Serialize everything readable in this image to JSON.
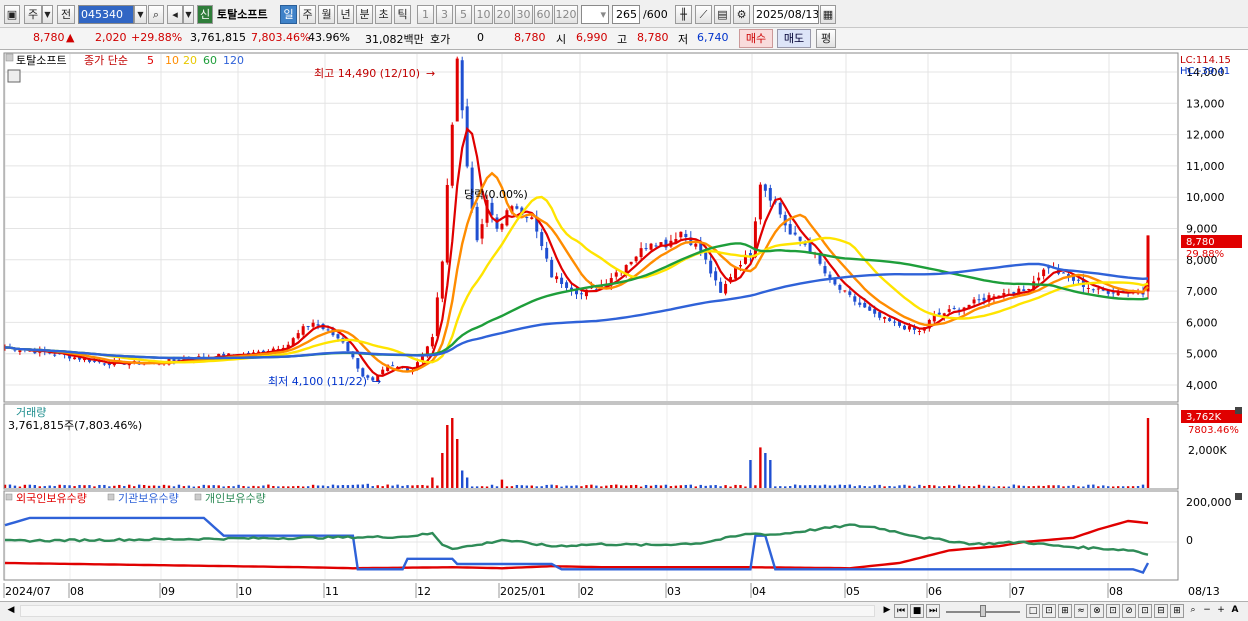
{
  "toolbar": {
    "type_label": "주",
    "prev_label": "전",
    "code": "045340",
    "new_badge": "신",
    "stock_name": "토탈소프트",
    "periods": [
      "일",
      "주",
      "월",
      "년",
      "분",
      "초",
      "틱"
    ],
    "minutes": [
      "1",
      "3",
      "5",
      "10",
      "20",
      "30",
      "60",
      "120"
    ],
    "count": "265",
    "count_total": "/600",
    "date": "2025/08/13"
  },
  "quote": {
    "price": "8,780",
    "change": "2,020",
    "change_pct": "+29.88%",
    "volume": "3,761,815",
    "volume_pct": "7,803.46%",
    "turnover": "43.96%",
    "amount": "31,082백만",
    "hoga_label": "호가",
    "hoga_value": "0",
    "hoga_price": "8,780",
    "open_label": "시",
    "open": "6,990",
    "high_label": "고",
    "high": "8,780",
    "low_label": "저",
    "low": "6,740",
    "buy_label": "매수",
    "sell_label": "매도",
    "avg_label": "평"
  },
  "price_panel": {
    "name_tag": "토탈소프트",
    "legend_prefix": "종가 단순",
    "ma": [
      {
        "period": "5",
        "color": "#e00000"
      },
      {
        "period": "10",
        "color": "#ff8c00"
      },
      {
        "period": "20",
        "color": "#ffe400"
      },
      {
        "period": "60",
        "color": "#1e9e3a"
      },
      {
        "period": "120",
        "color": "#2f62d8"
      }
    ],
    "max_label": "최고 14,490 (12/10)",
    "min_label": "최저 4,100 (11/22)",
    "event_label": "당락(0.00%)",
    "lc": "LC:114.15",
    "hc": "HC:-39.41",
    "last_price": "8,780",
    "last_pct": "29.88%",
    "y_ticks": [
      "14,000",
      "13,000",
      "12,000",
      "11,000",
      "10,000",
      "9,000",
      "8,000",
      "7,000",
      "6,000",
      "5,000",
      "4,000"
    ]
  },
  "volume_panel": {
    "title": "거래량",
    "info": "3,761,815주(7,803.46%)",
    "y_tick": "2,000K",
    "last": "3,762K",
    "last_pct": "7803.46%"
  },
  "holding_panel": {
    "legend": [
      "외국인보유수량",
      "기관보유수량",
      "개인보유수량"
    ],
    "colors": [
      "#e00000",
      "#2f62d8",
      "#2e8b57"
    ],
    "y_ticks": [
      "200,000",
      "0"
    ]
  },
  "x_axis": [
    "2024/07",
    "08",
    "09",
    "10",
    "11",
    "12",
    "2025/01",
    "02",
    "03",
    "04",
    "05",
    "06",
    "07",
    "08",
    "08/13"
  ],
  "colors": {
    "up": "#e00000",
    "down": "#1f4fd1",
    "accent": "#3f82c8"
  },
  "chart_data": {
    "type": "candlestick",
    "ylim": [
      3600,
      14700
    ],
    "price_anchors": [
      [
        0,
        5200
      ],
      [
        10,
        5000
      ],
      [
        20,
        4700
      ],
      [
        30,
        4700
      ],
      [
        40,
        4900
      ],
      [
        50,
        5000
      ],
      [
        57,
        5300
      ],
      [
        60,
        5800
      ],
      [
        62,
        6000
      ],
      [
        65,
        5700
      ],
      [
        68,
        5400
      ],
      [
        72,
        4300
      ],
      [
        74,
        4100
      ],
      [
        77,
        4600
      ],
      [
        82,
        4500
      ],
      [
        86,
        5500
      ],
      [
        88,
        8000
      ],
      [
        90,
        12500
      ],
      [
        91,
        14490
      ],
      [
        93,
        11000
      ],
      [
        95,
        8500
      ],
      [
        97,
        9800
      ],
      [
        99,
        9000
      ],
      [
        101,
        9500
      ],
      [
        103,
        9700
      ],
      [
        106,
        9300
      ],
      [
        110,
        7500
      ],
      [
        113,
        7200
      ],
      [
        116,
        6900
      ],
      [
        120,
        7200
      ],
      [
        126,
        8000
      ],
      [
        130,
        8600
      ],
      [
        133,
        8500
      ],
      [
        136,
        8900
      ],
      [
        140,
        8300
      ],
      [
        142,
        7600
      ],
      [
        144,
        6900
      ],
      [
        147,
        7800
      ],
      [
        150,
        8200
      ],
      [
        152,
        10500
      ],
      [
        155,
        9800
      ],
      [
        158,
        8800
      ],
      [
        161,
        8500
      ],
      [
        163,
        8100
      ],
      [
        166,
        7300
      ],
      [
        170,
        6800
      ],
      [
        175,
        6200
      ],
      [
        180,
        5900
      ],
      [
        184,
        5700
      ],
      [
        187,
        6200
      ],
      [
        193,
        6500
      ],
      [
        199,
        6900
      ],
      [
        205,
        7000
      ],
      [
        208,
        7500
      ],
      [
        210,
        7800
      ],
      [
        213,
        7500
      ],
      [
        217,
        7200
      ],
      [
        220,
        7000
      ],
      [
        225,
        7000
      ],
      [
        229,
        6990
      ],
      [
        230,
        8780
      ]
    ],
    "volume_events": [
      [
        72,
        0.05
      ],
      [
        73,
        0.06
      ],
      [
        86,
        0.15
      ],
      [
        88,
        0.5
      ],
      [
        89,
        0.9
      ],
      [
        90,
        1.0
      ],
      [
        91,
        0.7
      ],
      [
        92,
        0.25
      ],
      [
        93,
        0.15
      ],
      [
        100,
        0.12
      ],
      [
        150,
        0.4
      ],
      [
        152,
        0.58
      ],
      [
        153,
        0.5
      ],
      [
        154,
        0.4
      ],
      [
        230,
        1.0
      ]
    ],
    "holdings": {
      "foreign": [
        [
          0,
          -100
        ],
        [
          30,
          -110
        ],
        [
          60,
          -120
        ],
        [
          70,
          -125
        ],
        [
          90,
          -120
        ],
        [
          100,
          -125
        ],
        [
          110,
          -115
        ],
        [
          120,
          -120
        ],
        [
          150,
          -120
        ],
        [
          170,
          -125
        ],
        [
          180,
          -100
        ],
        [
          190,
          -40
        ],
        [
          200,
          -20
        ],
        [
          205,
          0
        ],
        [
          210,
          10
        ],
        [
          215,
          20
        ],
        [
          220,
          60
        ],
        [
          226,
          100
        ],
        [
          230,
          90
        ]
      ],
      "inst": [
        [
          0,
          80
        ],
        [
          5,
          115
        ],
        [
          40,
          115
        ],
        [
          44,
          30
        ],
        [
          70,
          30
        ],
        [
          71,
          -130
        ],
        [
          80,
          -130
        ],
        [
          81,
          -80
        ],
        [
          90,
          -80
        ],
        [
          91,
          -105
        ],
        [
          110,
          -105
        ],
        [
          112,
          -130
        ],
        [
          150,
          -130
        ],
        [
          151,
          30
        ],
        [
          153,
          30
        ],
        [
          155,
          -130
        ],
        [
          227,
          -130
        ],
        [
          229,
          -145
        ],
        [
          230,
          -100
        ]
      ],
      "indiv": [
        [
          0,
          5
        ],
        [
          20,
          10
        ],
        [
          40,
          15
        ],
        [
          60,
          20
        ],
        [
          80,
          25
        ],
        [
          86,
          40
        ],
        [
          88,
          -10
        ],
        [
          90,
          -30
        ],
        [
          95,
          -15
        ],
        [
          100,
          10
        ],
        [
          110,
          -20
        ],
        [
          120,
          -10
        ],
        [
          130,
          -15
        ],
        [
          140,
          -5
        ],
        [
          150,
          40
        ],
        [
          155,
          35
        ],
        [
          170,
          80
        ],
        [
          175,
          70
        ],
        [
          185,
          20
        ],
        [
          195,
          -10
        ],
        [
          205,
          0
        ],
        [
          212,
          -20
        ],
        [
          220,
          -30
        ],
        [
          227,
          -40
        ],
        [
          230,
          -60
        ]
      ]
    }
  }
}
